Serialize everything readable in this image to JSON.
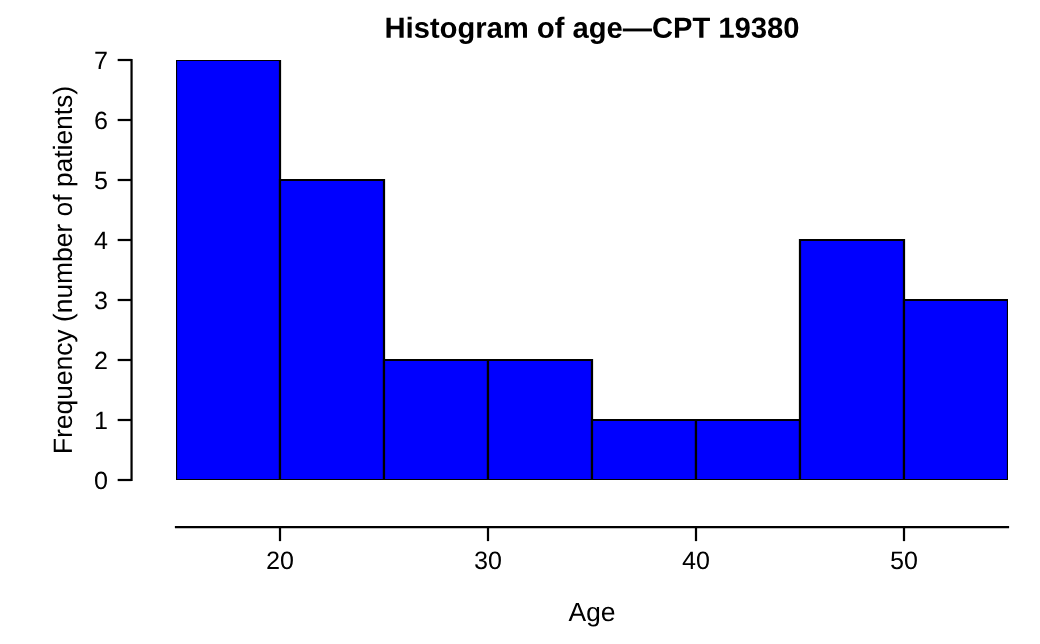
{
  "chart_data": {
    "type": "histogram",
    "title": "Histogram of age—CPT 19380",
    "xlabel": "Age",
    "ylabel": "Frequency (number of patients)",
    "bins": [
      15,
      20,
      25,
      30,
      35,
      40,
      45,
      50,
      55
    ],
    "values": [
      7,
      5,
      2,
      2,
      1,
      1,
      4,
      3
    ],
    "color": "#0000ff",
    "xlim": [
      15,
      55
    ],
    "ylim": [
      0,
      7
    ],
    "xticks": [
      20,
      30,
      40,
      50
    ],
    "yticks": [
      0,
      1,
      2,
      3,
      4,
      5,
      6,
      7
    ],
    "grid": false
  }
}
